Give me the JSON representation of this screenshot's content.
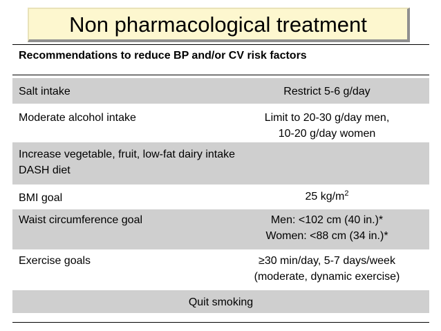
{
  "title": "Non pharmacological treatment",
  "subtitle": "Recommendations to reduce BP and/or CV risk factors",
  "rows": [
    {
      "label": "Salt intake",
      "value": [
        "Restrict 5-6 g/day"
      ]
    },
    {
      "label": "Moderate alcohol intake",
      "value": [
        "Limit to 20-30 g/day men,",
        "10-20 g/day women"
      ]
    },
    {
      "label": [
        "Increase vegetable, fruit, low-fat dairy intake",
        "DASH diet"
      ]
    },
    {
      "label": "BMI goal",
      "value": "25 kg/m",
      "value_sup": "2"
    },
    {
      "label": "Waist circumference goal",
      "value": [
        "Men: <102 cm (40 in.)*",
        "Women: <88 cm (34 in.)*"
      ]
    },
    {
      "label": "Exercise goals",
      "value": [
        "≥30 min/day, 5-7 days/week",
        "(moderate, dynamic exercise)"
      ]
    },
    {
      "label": "Quit smoking"
    }
  ]
}
